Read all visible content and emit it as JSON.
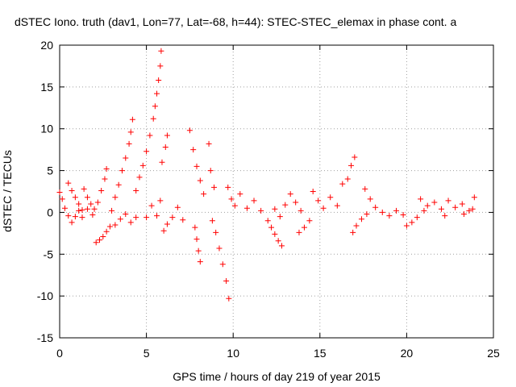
{
  "chart_data": {
    "type": "scatter",
    "title": "dSTEC Iono. truth (dav1, Lon=77, Lat=-68, h=44): STEC-STEC_elemax in phase cont. a",
    "xlabel": "GPS time / hours of day 219 of year 2015",
    "ylabel": "dSTEC  / TECUs",
    "xlim": [
      0,
      25
    ],
    "ylim": [
      -15,
      20
    ],
    "x_ticks": [
      0,
      5,
      10,
      15,
      20,
      25
    ],
    "y_ticks": [
      -15,
      -10,
      -5,
      0,
      5,
      10,
      15,
      20
    ],
    "x_tick_labels": [
      "0",
      "5",
      "10",
      "15",
      "20",
      "25"
    ],
    "y_tick_labels": [
      "-15",
      "-10",
      "-5",
      "0",
      "5",
      "10",
      "15",
      "20"
    ],
    "grid": true,
    "marker": "+",
    "color": "#ff0000",
    "series": [
      {
        "points": [
          [
            0.0,
            2.4
          ],
          [
            0.15,
            1.6
          ],
          [
            0.3,
            0.5
          ],
          [
            0.5,
            -0.4
          ],
          [
            0.7,
            -1.2
          ],
          [
            0.9,
            -0.5
          ],
          [
            1.1,
            0.2
          ],
          [
            1.3,
            -0.6
          ],
          [
            1.6,
            0.4
          ],
          [
            1.9,
            -0.3
          ],
          [
            0.5,
            3.5
          ],
          [
            0.7,
            2.6
          ],
          [
            0.9,
            1.8
          ],
          [
            1.1,
            1.0
          ],
          [
            1.3,
            0.3
          ],
          [
            1.4,
            2.8
          ],
          [
            1.6,
            1.8
          ],
          [
            1.8,
            1.0
          ],
          [
            2.0,
            0.4
          ],
          [
            2.2,
            1.2
          ],
          [
            2.4,
            2.6
          ],
          [
            2.6,
            4.0
          ],
          [
            2.7,
            5.2
          ],
          [
            2.1,
            -3.6
          ],
          [
            2.3,
            -3.3
          ],
          [
            2.5,
            -2.9
          ],
          [
            2.7,
            -2.3
          ],
          [
            2.9,
            -1.7
          ],
          [
            3.0,
            0.2
          ],
          [
            3.2,
            1.8
          ],
          [
            3.4,
            3.3
          ],
          [
            3.6,
            5.0
          ],
          [
            3.8,
            6.5
          ],
          [
            4.0,
            8.2
          ],
          [
            4.1,
            9.6
          ],
          [
            4.2,
            11.1
          ],
          [
            3.2,
            -1.5
          ],
          [
            3.5,
            -0.8
          ],
          [
            3.8,
            -0.2
          ],
          [
            4.1,
            -1.2
          ],
          [
            4.4,
            -0.6
          ],
          [
            4.4,
            2.6
          ],
          [
            4.6,
            4.2
          ],
          [
            4.8,
            5.6
          ],
          [
            5.0,
            7.3
          ],
          [
            5.2,
            9.2
          ],
          [
            5.4,
            11.2
          ],
          [
            5.5,
            12.7
          ],
          [
            5.6,
            14.2
          ],
          [
            5.7,
            15.8
          ],
          [
            5.8,
            17.5
          ],
          [
            5.85,
            19.3
          ],
          [
            5.0,
            -0.6
          ],
          [
            5.3,
            0.8
          ],
          [
            5.6,
            -0.4
          ],
          [
            5.8,
            1.4
          ],
          [
            5.9,
            6.0
          ],
          [
            6.1,
            7.8
          ],
          [
            6.2,
            9.2
          ],
          [
            6.0,
            -2.2
          ],
          [
            6.2,
            -1.4
          ],
          [
            6.5,
            -0.6
          ],
          [
            6.8,
            0.6
          ],
          [
            7.1,
            -0.9
          ],
          [
            7.5,
            9.8
          ],
          [
            7.7,
            7.5
          ],
          [
            7.9,
            5.5
          ],
          [
            8.1,
            3.8
          ],
          [
            8.3,
            2.2
          ],
          [
            7.8,
            -1.8
          ],
          [
            7.9,
            -3.2
          ],
          [
            8.0,
            -4.6
          ],
          [
            8.1,
            -5.9
          ],
          [
            8.6,
            8.2
          ],
          [
            8.7,
            5.0
          ],
          [
            8.9,
            3.0
          ],
          [
            8.8,
            -1.0
          ],
          [
            9.0,
            -2.4
          ],
          [
            9.2,
            -4.3
          ],
          [
            9.4,
            -6.2
          ],
          [
            9.6,
            -8.2
          ],
          [
            9.75,
            -10.3
          ],
          [
            9.7,
            3.0
          ],
          [
            9.9,
            1.6
          ],
          [
            10.1,
            0.8
          ],
          [
            10.4,
            2.2
          ],
          [
            10.8,
            0.5
          ],
          [
            11.2,
            1.4
          ],
          [
            11.6,
            0.2
          ],
          [
            12.0,
            -1.0
          ],
          [
            12.2,
            -1.8
          ],
          [
            12.4,
            -2.6
          ],
          [
            12.6,
            -3.4
          ],
          [
            12.8,
            -4.0
          ],
          [
            12.4,
            0.4
          ],
          [
            12.7,
            -0.5
          ],
          [
            13.0,
            0.9
          ],
          [
            13.3,
            2.2
          ],
          [
            13.6,
            1.2
          ],
          [
            13.9,
            0.2
          ],
          [
            13.8,
            -2.4
          ],
          [
            14.1,
            -1.8
          ],
          [
            14.4,
            -1.0
          ],
          [
            14.6,
            2.5
          ],
          [
            14.9,
            1.4
          ],
          [
            15.2,
            0.5
          ],
          [
            15.6,
            1.8
          ],
          [
            16.0,
            0.8
          ],
          [
            16.3,
            3.4
          ],
          [
            16.6,
            4.0
          ],
          [
            16.8,
            5.6
          ],
          [
            17.0,
            6.6
          ],
          [
            16.9,
            -2.4
          ],
          [
            17.1,
            -1.6
          ],
          [
            17.4,
            -0.8
          ],
          [
            17.7,
            -0.2
          ],
          [
            17.6,
            2.8
          ],
          [
            17.9,
            1.6
          ],
          [
            18.2,
            0.6
          ],
          [
            18.6,
            0.0
          ],
          [
            19.0,
            -0.4
          ],
          [
            19.4,
            0.2
          ],
          [
            19.8,
            -0.3
          ],
          [
            20.0,
            -1.6
          ],
          [
            20.3,
            -1.2
          ],
          [
            20.6,
            -0.6
          ],
          [
            20.8,
            1.6
          ],
          [
            21.2,
            0.8
          ],
          [
            21.6,
            1.2
          ],
          [
            22.0,
            0.4
          ],
          [
            22.4,
            1.4
          ],
          [
            22.8,
            0.6
          ],
          [
            23.2,
            1.0
          ],
          [
            23.6,
            0.2
          ],
          [
            23.9,
            1.8
          ],
          [
            21.0,
            0.2
          ],
          [
            22.2,
            -0.4
          ],
          [
            23.3,
            -0.2
          ],
          [
            23.8,
            0.4
          ]
        ]
      }
    ]
  }
}
